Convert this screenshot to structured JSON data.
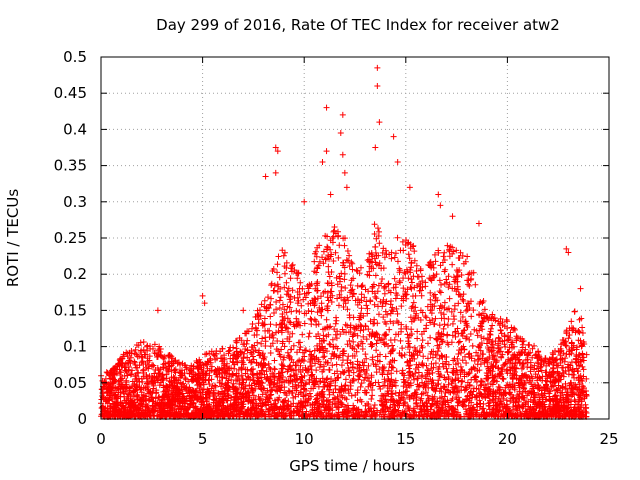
{
  "chart_data": {
    "type": "scatter",
    "title": "Day 299 of 2016, Rate Of TEC Index for receiver atw2",
    "xlabel": "GPS time / hours",
    "ylabel": "ROTI / TECUs",
    "xlim": [
      0,
      25
    ],
    "ylim": [
      0,
      0.5
    ],
    "x_ticks": [
      0,
      5,
      10,
      15,
      20,
      25
    ],
    "x_tick_labels": [
      "0",
      "5",
      "10",
      "15",
      "20",
      "25"
    ],
    "y_ticks": [
      0,
      0.05,
      0.1,
      0.15,
      0.2,
      0.25,
      0.3,
      0.35,
      0.4,
      0.45,
      0.5
    ],
    "y_tick_labels": [
      "0",
      "0.05",
      "0.1",
      "0.15",
      "0.2",
      "0.25",
      "0.3",
      "0.35",
      "0.4",
      "0.45",
      "0.5"
    ],
    "grid": true,
    "marker": "+",
    "color": "#ff0000",
    "data_range_x": [
      0,
      23.9
    ],
    "envelope": {
      "x": [
        0,
        0.5,
        1,
        1.5,
        2,
        2.5,
        3,
        3.5,
        4,
        4.5,
        5,
        5.5,
        6,
        6.5,
        7,
        7.5,
        8,
        8.5,
        9,
        9.5,
        10,
        10.5,
        11,
        11.5,
        12,
        12.5,
        13,
        13.5,
        14,
        14.5,
        15,
        15.5,
        16,
        16.5,
        17,
        17.5,
        18,
        18.5,
        19,
        19.5,
        20,
        20.5,
        21,
        21.5,
        22,
        22.5,
        23,
        23.5,
        23.9
      ],
      "typical_max": [
        0.06,
        0.06,
        0.08,
        0.09,
        0.1,
        0.1,
        0.09,
        0.08,
        0.07,
        0.07,
        0.08,
        0.09,
        0.09,
        0.1,
        0.11,
        0.13,
        0.16,
        0.2,
        0.23,
        0.2,
        0.18,
        0.22,
        0.24,
        0.25,
        0.24,
        0.2,
        0.2,
        0.26,
        0.22,
        0.24,
        0.24,
        0.22,
        0.2,
        0.22,
        0.23,
        0.22,
        0.22,
        0.18,
        0.14,
        0.13,
        0.13,
        0.11,
        0.1,
        0.09,
        0.08,
        0.09,
        0.12,
        0.15,
        0.1
      ]
    },
    "peaks": [
      {
        "x": 13.6,
        "y": 0.485
      },
      {
        "x": 13.6,
        "y": 0.46
      },
      {
        "x": 13.7,
        "y": 0.41
      },
      {
        "x": 11.1,
        "y": 0.43
      },
      {
        "x": 11.9,
        "y": 0.42
      },
      {
        "x": 11.8,
        "y": 0.395
      },
      {
        "x": 14.4,
        "y": 0.39
      },
      {
        "x": 13.5,
        "y": 0.375
      },
      {
        "x": 8.6,
        "y": 0.375
      },
      {
        "x": 8.7,
        "y": 0.37
      },
      {
        "x": 11.1,
        "y": 0.37
      },
      {
        "x": 11.9,
        "y": 0.365
      },
      {
        "x": 12.0,
        "y": 0.34
      },
      {
        "x": 14.6,
        "y": 0.355
      },
      {
        "x": 10.9,
        "y": 0.355
      },
      {
        "x": 8.6,
        "y": 0.34
      },
      {
        "x": 8.1,
        "y": 0.335
      },
      {
        "x": 16.6,
        "y": 0.31
      },
      {
        "x": 16.7,
        "y": 0.295
      },
      {
        "x": 15.2,
        "y": 0.32
      },
      {
        "x": 12.1,
        "y": 0.32
      },
      {
        "x": 11.3,
        "y": 0.31
      },
      {
        "x": 10.0,
        "y": 0.3
      },
      {
        "x": 18.6,
        "y": 0.27
      },
      {
        "x": 17.3,
        "y": 0.28
      },
      {
        "x": 22.9,
        "y": 0.235
      },
      {
        "x": 23.0,
        "y": 0.23
      },
      {
        "x": 5.0,
        "y": 0.17
      },
      {
        "x": 5.1,
        "y": 0.16
      },
      {
        "x": 23.6,
        "y": 0.18
      },
      {
        "x": 7.0,
        "y": 0.15
      },
      {
        "x": 2.8,
        "y": 0.15
      }
    ]
  }
}
